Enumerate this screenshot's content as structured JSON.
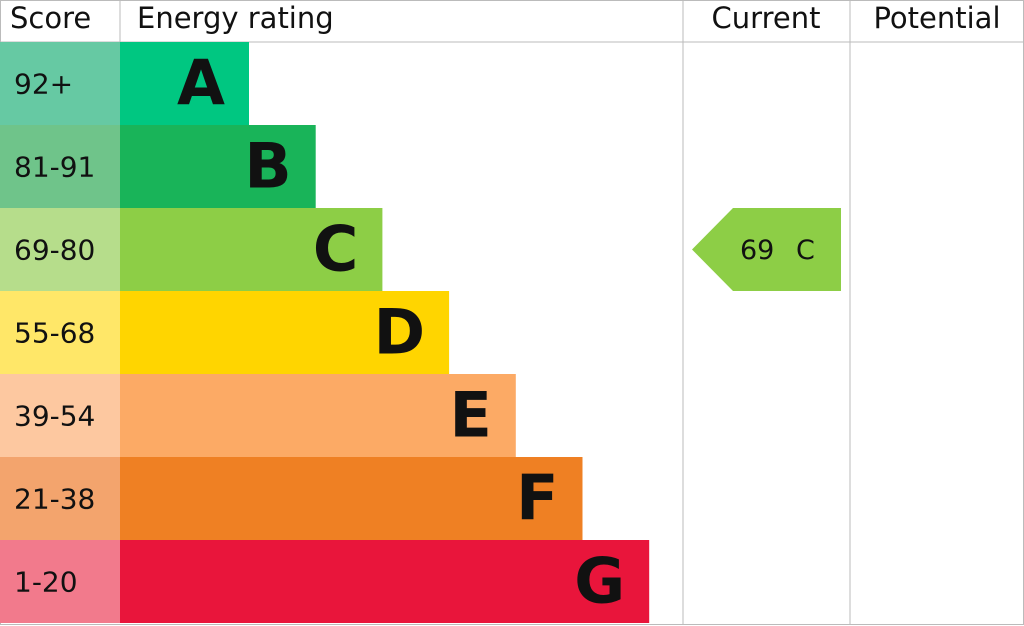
{
  "header": {
    "score": "Score",
    "energy_rating": "Energy rating",
    "current": "Current",
    "potential": "Potential"
  },
  "bands": [
    {
      "score": "92+",
      "rating": "A",
      "score_color": "#66c9a3",
      "color": "#00c781"
    },
    {
      "score": "81-91",
      "rating": "B",
      "score_color": "#6fc48a",
      "color": "#19b459"
    },
    {
      "score": "69-80",
      "rating": "C",
      "score_color": "#b6dd8b",
      "color": "#8dce46"
    },
    {
      "score": "55-68",
      "rating": "D",
      "score_color": "#ffe768",
      "color": "#ffd500"
    },
    {
      "score": "39-54",
      "rating": "E",
      "score_color": "#fdc8a0",
      "color": "#fcaa65"
    },
    {
      "score": "21-38",
      "rating": "F",
      "score_color": "#f3a46d",
      "color": "#ef8023"
    },
    {
      "score": "1-20",
      "rating": "G",
      "score_color": "#f27a8c",
      "color": "#e9153b"
    }
  ],
  "current": {
    "score": 69,
    "rating": "C",
    "color": "#8dce46"
  }
}
